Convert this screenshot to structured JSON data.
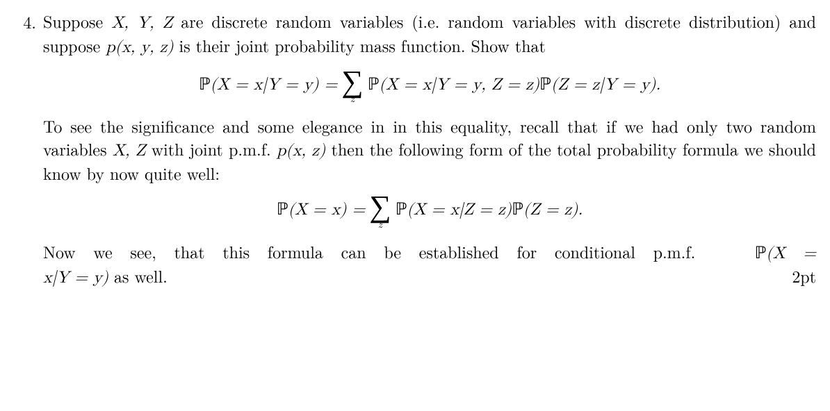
{
  "problem": {
    "number": "4.",
    "intro": "Suppose ",
    "vars1": "X, Y, Z",
    "intro2": " are discrete random variables (i.e. random variables with discrete distribution) and suppose ",
    "pxyz": "p(x, y, z)",
    "intro3": " is their joint probability mass function. Show that",
    "eq1_lhs": "ℙ(X = x|Y = y) = ",
    "eq1_rhs": " ℙ(X = x|Y = y, Z = z)ℙ(Z = z|Y = y).",
    "sum_sub": "z",
    "para2a": "To see the significance and some elegance in in this equality, recall that if we had only two random variables ",
    "xz": "X, Z",
    "para2b": " with joint p.m.f. ",
    "pxz": "p(x, z)",
    "para2c": " then the following form of the total probability formula we should know by now quite well:",
    "eq2_lhs": "ℙ(X = x) = ",
    "eq2_rhs": " ℙ(X = x|Z = z)ℙ(Z = z).",
    "para3a": "Now we see, that this formula can be established for conditional p.m.f. ",
    "para3b_math1": "ℙ(X =",
    "para3c_math2": "x|Y = y)",
    "para3d": " as well.",
    "points": "2pt"
  },
  "style": {
    "text_color": "#000000",
    "background": "#ffffff",
    "font_size_body": 24,
    "font_size_sum": 44,
    "font_size_sub": 15
  }
}
